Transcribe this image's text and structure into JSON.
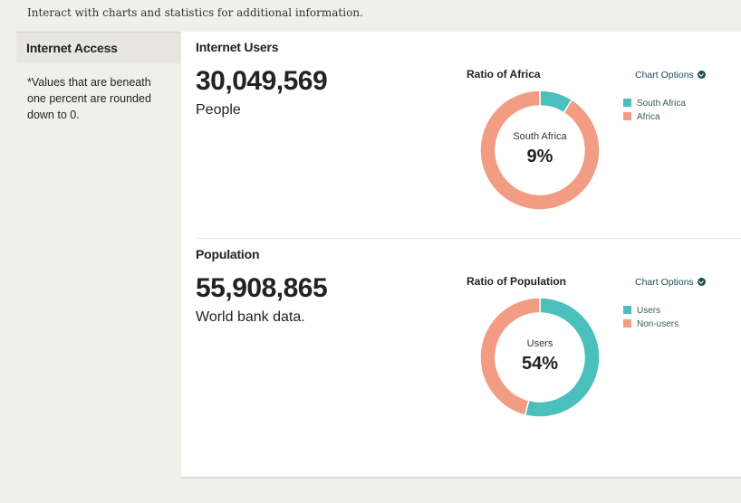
{
  "intro": "Interact with charts and statistics for additional information.",
  "sidebar": {
    "title": "Internet Access",
    "note": "*Values that are beneath one percent are rounded down to 0."
  },
  "colors": {
    "teal": "#4bbfbc",
    "salmon": "#f19c83",
    "link": "#1c4f56"
  },
  "sections": [
    {
      "title": "Internet Users",
      "value": "30,049,569",
      "sub": "People",
      "chart_title": "Ratio of Africa",
      "chart_options": "Chart Options",
      "legend": [
        {
          "label": "South Africa",
          "color": "#4bbfbc"
        },
        {
          "label": "Africa",
          "color": "#f19c83"
        }
      ],
      "center_label": "South Africa",
      "center_value": "9%"
    },
    {
      "title": "Population",
      "value": "55,908,865",
      "sub": "World bank data.",
      "chart_title": "Ratio of Population",
      "chart_options": "Chart Options",
      "legend": [
        {
          "label": "Users",
          "color": "#4bbfbc"
        },
        {
          "label": "Non-users",
          "color": "#f19c83"
        }
      ],
      "center_label": "Users",
      "center_value": "54%"
    }
  ],
  "chart_data": [
    {
      "type": "pie",
      "title": "Ratio of Africa",
      "categories": [
        "South Africa",
        "Africa"
      ],
      "values": [
        9,
        91
      ],
      "colors": [
        "#4bbfbc",
        "#f19c83"
      ]
    },
    {
      "type": "pie",
      "title": "Ratio of Population",
      "categories": [
        "Users",
        "Non-users"
      ],
      "values": [
        54,
        46
      ],
      "colors": [
        "#4bbfbc",
        "#f19c83"
      ]
    }
  ]
}
